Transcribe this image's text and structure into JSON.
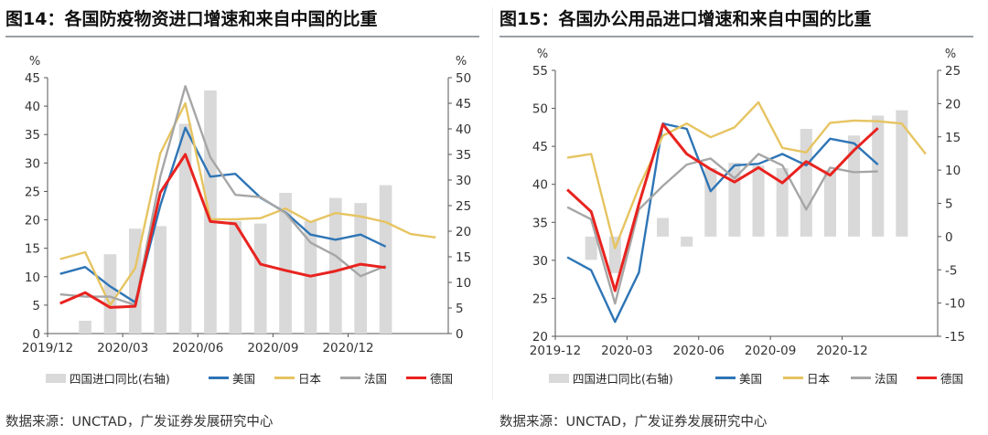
{
  "charts": [
    {
      "id": "left",
      "title": "图14：各国防疫物资进口增速和来自中国的比重",
      "source": "数据来源：UNCTAD，广发证券发展研究中心"
    },
    {
      "id": "right",
      "title": "图15：各国办公用品进口增速和来自中国的比重",
      "source": "数据来源：UNCTAD，广发证券发展研究中心"
    }
  ],
  "colors": {
    "bar": "#d9d9d9",
    "美国": "#2e75b6",
    "日本": "#e6c461",
    "法国": "#a6a6a6",
    "德国": "#e8231f"
  },
  "chart_data": [
    {
      "type": "bar+line",
      "title": "图14：各国防疫物资进口增速和来自中国的比重",
      "ylabel_left": "%",
      "ylabel_right": "%",
      "ylim_left": [
        0,
        45
      ],
      "ylim_right": [
        0,
        50
      ],
      "yticks_left": [
        0,
        5,
        10,
        15,
        20,
        25,
        30,
        35,
        40,
        45
      ],
      "yticks_right": [
        0,
        5,
        10,
        15,
        20,
        25,
        30,
        35,
        40,
        45,
        50
      ],
      "x_index_range": [
        0,
        16
      ],
      "xtick_labels": [
        {
          "i": 0,
          "label": "2019/12"
        },
        {
          "i": 3,
          "label": "2020/03"
        },
        {
          "i": 6,
          "label": "2020/06"
        },
        {
          "i": 9,
          "label": "2020/09"
        },
        {
          "i": 12,
          "label": "2020/12"
        }
      ],
      "bar_series": {
        "name": "四国进口同比(右轴)",
        "x": [
          0,
          1,
          2,
          3,
          4,
          5,
          6,
          7,
          8,
          9,
          10,
          11,
          12,
          13,
          14,
          15
        ],
        "values": [
          0,
          2.5,
          15.5,
          20.5,
          21,
          41,
          47.5,
          22,
          21.5,
          27.5,
          22,
          26.5,
          25.5,
          29,
          0,
          0
        ]
      },
      "line_series": [
        {
          "name": "美国",
          "x": [
            0,
            1,
            2,
            3,
            4,
            5,
            6,
            7,
            8,
            9,
            10,
            11,
            12,
            13
          ],
          "values": [
            10.5,
            11.7,
            8.3,
            5.5,
            22.5,
            36.2,
            27.6,
            28.1,
            23.9,
            21.3,
            17.4,
            16.5,
            17.4,
            15.3
          ]
        },
        {
          "name": "日本",
          "x": [
            0,
            1,
            2,
            3,
            4,
            5,
            6,
            7,
            8,
            9,
            10,
            11,
            12,
            13,
            14,
            15
          ],
          "values": [
            13.1,
            14.3,
            5.0,
            11.5,
            31.7,
            40.5,
            20.1,
            20.1,
            20.3,
            22.0,
            19.6,
            21.2,
            20.6,
            19.6,
            17.5,
            16.9
          ]
        },
        {
          "name": "法国",
          "x": [
            0,
            1,
            2,
            3,
            4,
            5,
            6,
            7,
            8,
            9,
            10,
            11,
            12,
            13
          ],
          "values": [
            6.9,
            6.5,
            6.5,
            5.0,
            27.6,
            43.5,
            31.0,
            24.4,
            24.0,
            21.2,
            16.0,
            13.7,
            10.1,
            11.9
          ]
        },
        {
          "name": "德国",
          "x": [
            0,
            1,
            2,
            3,
            4,
            5,
            6,
            7,
            8,
            9,
            10,
            11,
            12,
            13
          ],
          "values": [
            5.3,
            7.2,
            4.6,
            4.8,
            24.8,
            31.5,
            19.7,
            19.3,
            12.2,
            11.1,
            10.1,
            11.0,
            12.2,
            11.6
          ]
        }
      ],
      "legend": [
        "四国进口同比(右轴)",
        "美国",
        "日本",
        "法国",
        "德国"
      ],
      "legend_placement": "bottom"
    },
    {
      "type": "bar+line",
      "title": "图15：各国办公用品进口增速和来自中国的比重",
      "ylabel_left": "%",
      "ylabel_right": "%",
      "ylim_left": [
        20,
        55
      ],
      "ylim_right": [
        -15,
        25
      ],
      "yticks_left": [
        20,
        25,
        30,
        35,
        40,
        45,
        50,
        55
      ],
      "yticks_right": [
        -15,
        -10,
        -5,
        0,
        5,
        10,
        15,
        20,
        25
      ],
      "x_index_range": [
        0,
        16
      ],
      "xtick_labels": [
        {
          "i": 0,
          "label": "2019-12"
        },
        {
          "i": 3,
          "label": "2020-03"
        },
        {
          "i": 6,
          "label": "2020-06"
        },
        {
          "i": 9,
          "label": "2020-09"
        },
        {
          "i": 12,
          "label": "2020-12"
        }
      ],
      "bar_series": {
        "name": "四国进口同比(右轴)",
        "x": [
          0,
          1,
          2,
          3,
          4,
          5,
          6,
          7,
          8,
          9,
          10,
          11,
          12,
          13,
          14,
          15
        ],
        "values": [
          0,
          -3.5,
          -5.5,
          0,
          2.8,
          -1.5,
          10.3,
          11.1,
          10.7,
          10.3,
          16.2,
          10.0,
          15.2,
          18.2,
          19.0,
          0
        ]
      },
      "line_series": [
        {
          "name": "美国",
          "x": [
            0,
            1,
            2,
            3,
            4,
            5,
            6,
            7,
            8,
            9,
            10,
            11,
            12,
            13
          ],
          "values": [
            30.4,
            28.7,
            21.9,
            28.4,
            48.0,
            47.3,
            39.1,
            42.5,
            42.7,
            44.0,
            42.5,
            46.0,
            45.4,
            42.6
          ]
        },
        {
          "name": "日本",
          "x": [
            0,
            1,
            2,
            3,
            4,
            5,
            6,
            7,
            8,
            9,
            10,
            11,
            12,
            13,
            14,
            15
          ],
          "values": [
            43.5,
            44.0,
            31.6,
            39.6,
            46.4,
            48.0,
            46.2,
            47.5,
            50.8,
            44.8,
            44.2,
            48.1,
            48.4,
            48.3,
            48.0,
            44.0
          ]
        },
        {
          "name": "法国",
          "x": [
            0,
            1,
            2,
            3,
            4,
            5,
            6,
            7,
            8,
            9,
            10,
            11,
            12,
            13
          ],
          "values": [
            37.0,
            35.4,
            24.3,
            36.7,
            39.8,
            42.6,
            43.4,
            40.8,
            44.0,
            42.5,
            36.7,
            42.2,
            41.6,
            41.7
          ]
        },
        {
          "name": "德国",
          "x": [
            0,
            1,
            2,
            3,
            4,
            5,
            6,
            7,
            8,
            9,
            10,
            11,
            12,
            13
          ],
          "values": [
            39.3,
            36.4,
            26.0,
            37.4,
            47.9,
            44.0,
            42.0,
            40.3,
            42.2,
            40.2,
            43.0,
            41.2,
            44.5,
            47.4
          ]
        }
      ],
      "legend": [
        "四国进口同比(右轴)",
        "美国",
        "日本",
        "法国",
        "德国"
      ],
      "legend_placement": "bottom"
    }
  ]
}
